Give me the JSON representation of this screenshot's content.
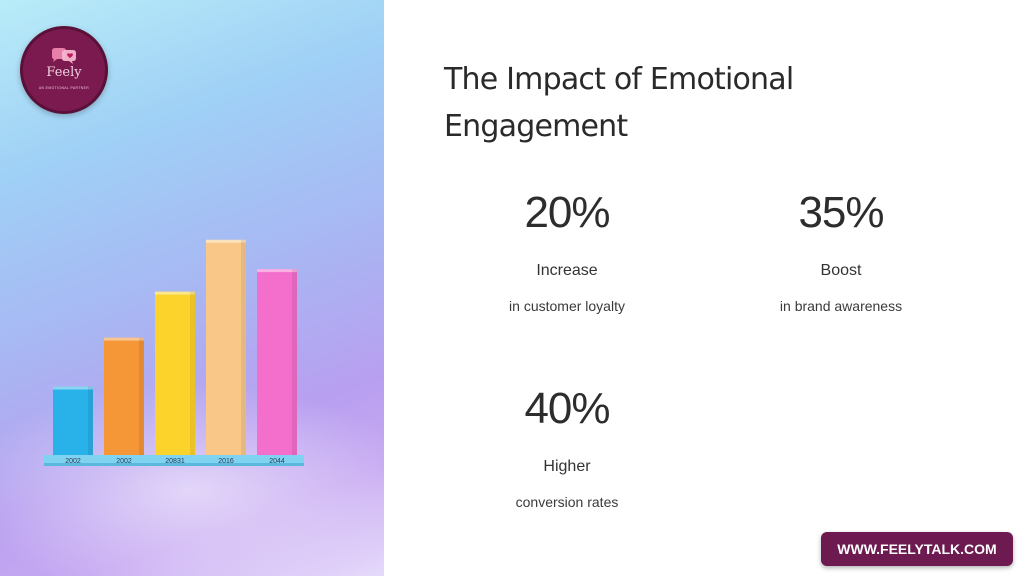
{
  "logo": {
    "brand": "Feely",
    "tagline": "AN EMOTIONAL PARTNER"
  },
  "title": "The Impact of Emotional Engagement",
  "stats": [
    {
      "value": "20%",
      "label": "Increase",
      "desc": "in customer loyalty"
    },
    {
      "value": "35%",
      "label": "Boost",
      "desc": "in brand awareness"
    },
    {
      "value": "40%",
      "label": "Higher",
      "desc": "conversion rates"
    }
  ],
  "website": "WWW.FEELYTALK.COM",
  "chart_data": {
    "type": "bar",
    "categories": [
      "2002",
      "2002",
      "20831",
      "2016",
      "2044"
    ],
    "values": [
      70,
      120,
      167,
      220,
      190
    ],
    "colors": [
      "#29b1ea",
      "#f59637",
      "#fcd32a",
      "#f9c889",
      "#f46fcc"
    ],
    "ylim": [
      0,
      230
    ]
  }
}
